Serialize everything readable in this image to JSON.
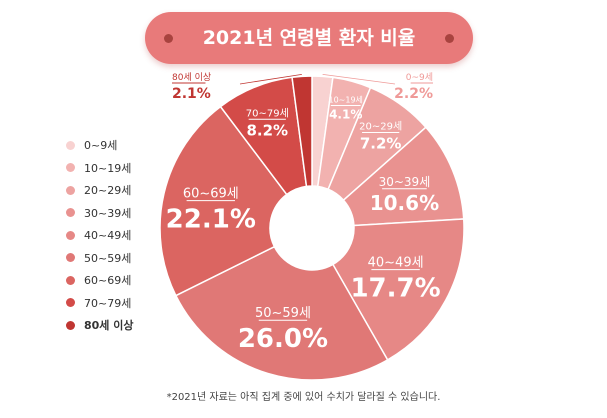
{
  "title": "2021년 연령별 환자 비율",
  "footnote": "*2021년 자료는 아직 집계 중에 있어 수치가 달라질 수 있습니다.",
  "chart_data": {
    "type": "pie",
    "title": "2021년 연령별 환자 비율",
    "donut": true,
    "categories": [
      "0~9세",
      "10~19세",
      "20~29세",
      "30~39세",
      "40~49세",
      "50~59세",
      "60~69세",
      "70~79세",
      "80세 이상"
    ],
    "values": [
      2.2,
      4.1,
      7.2,
      10.6,
      17.7,
      26.0,
      22.1,
      8.2,
      2.1
    ],
    "value_labels": [
      "2.2%",
      "4.1%",
      "7.2%",
      "10.6%",
      "17.7%",
      "26.0%",
      "22.1%",
      "8.2%",
      "2.1%"
    ],
    "colors": [
      "#f8d2d1",
      "#f2b2b0",
      "#eda3a1",
      "#e99290",
      "#e68886",
      "#e07876",
      "#db6561",
      "#d34b48",
      "#c03632"
    ],
    "legend_position": "left"
  }
}
